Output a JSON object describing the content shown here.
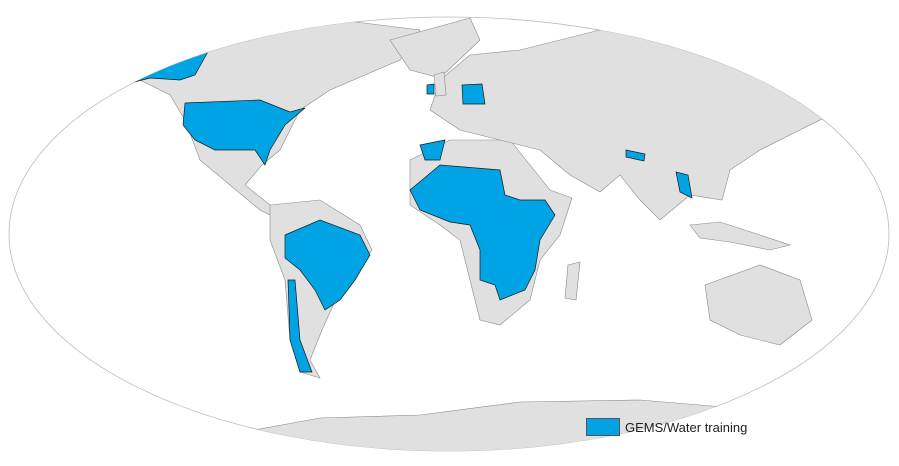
{
  "map": {
    "projection": "Robinson-like world map",
    "base_color": "#e0e0e0",
    "highlight_color": "#00a4e4",
    "highlighted_regions": [
      "Alaska",
      "United States",
      "Brazil",
      "Chile",
      "Morocco",
      "West Africa",
      "Central Africa",
      "East Africa",
      "Southern Africa",
      "Ireland",
      "Germany",
      "Nepal",
      "Laos"
    ]
  },
  "legend": {
    "items": [
      {
        "label": "GEMS/Water training",
        "color": "#00a4e4"
      }
    ]
  }
}
